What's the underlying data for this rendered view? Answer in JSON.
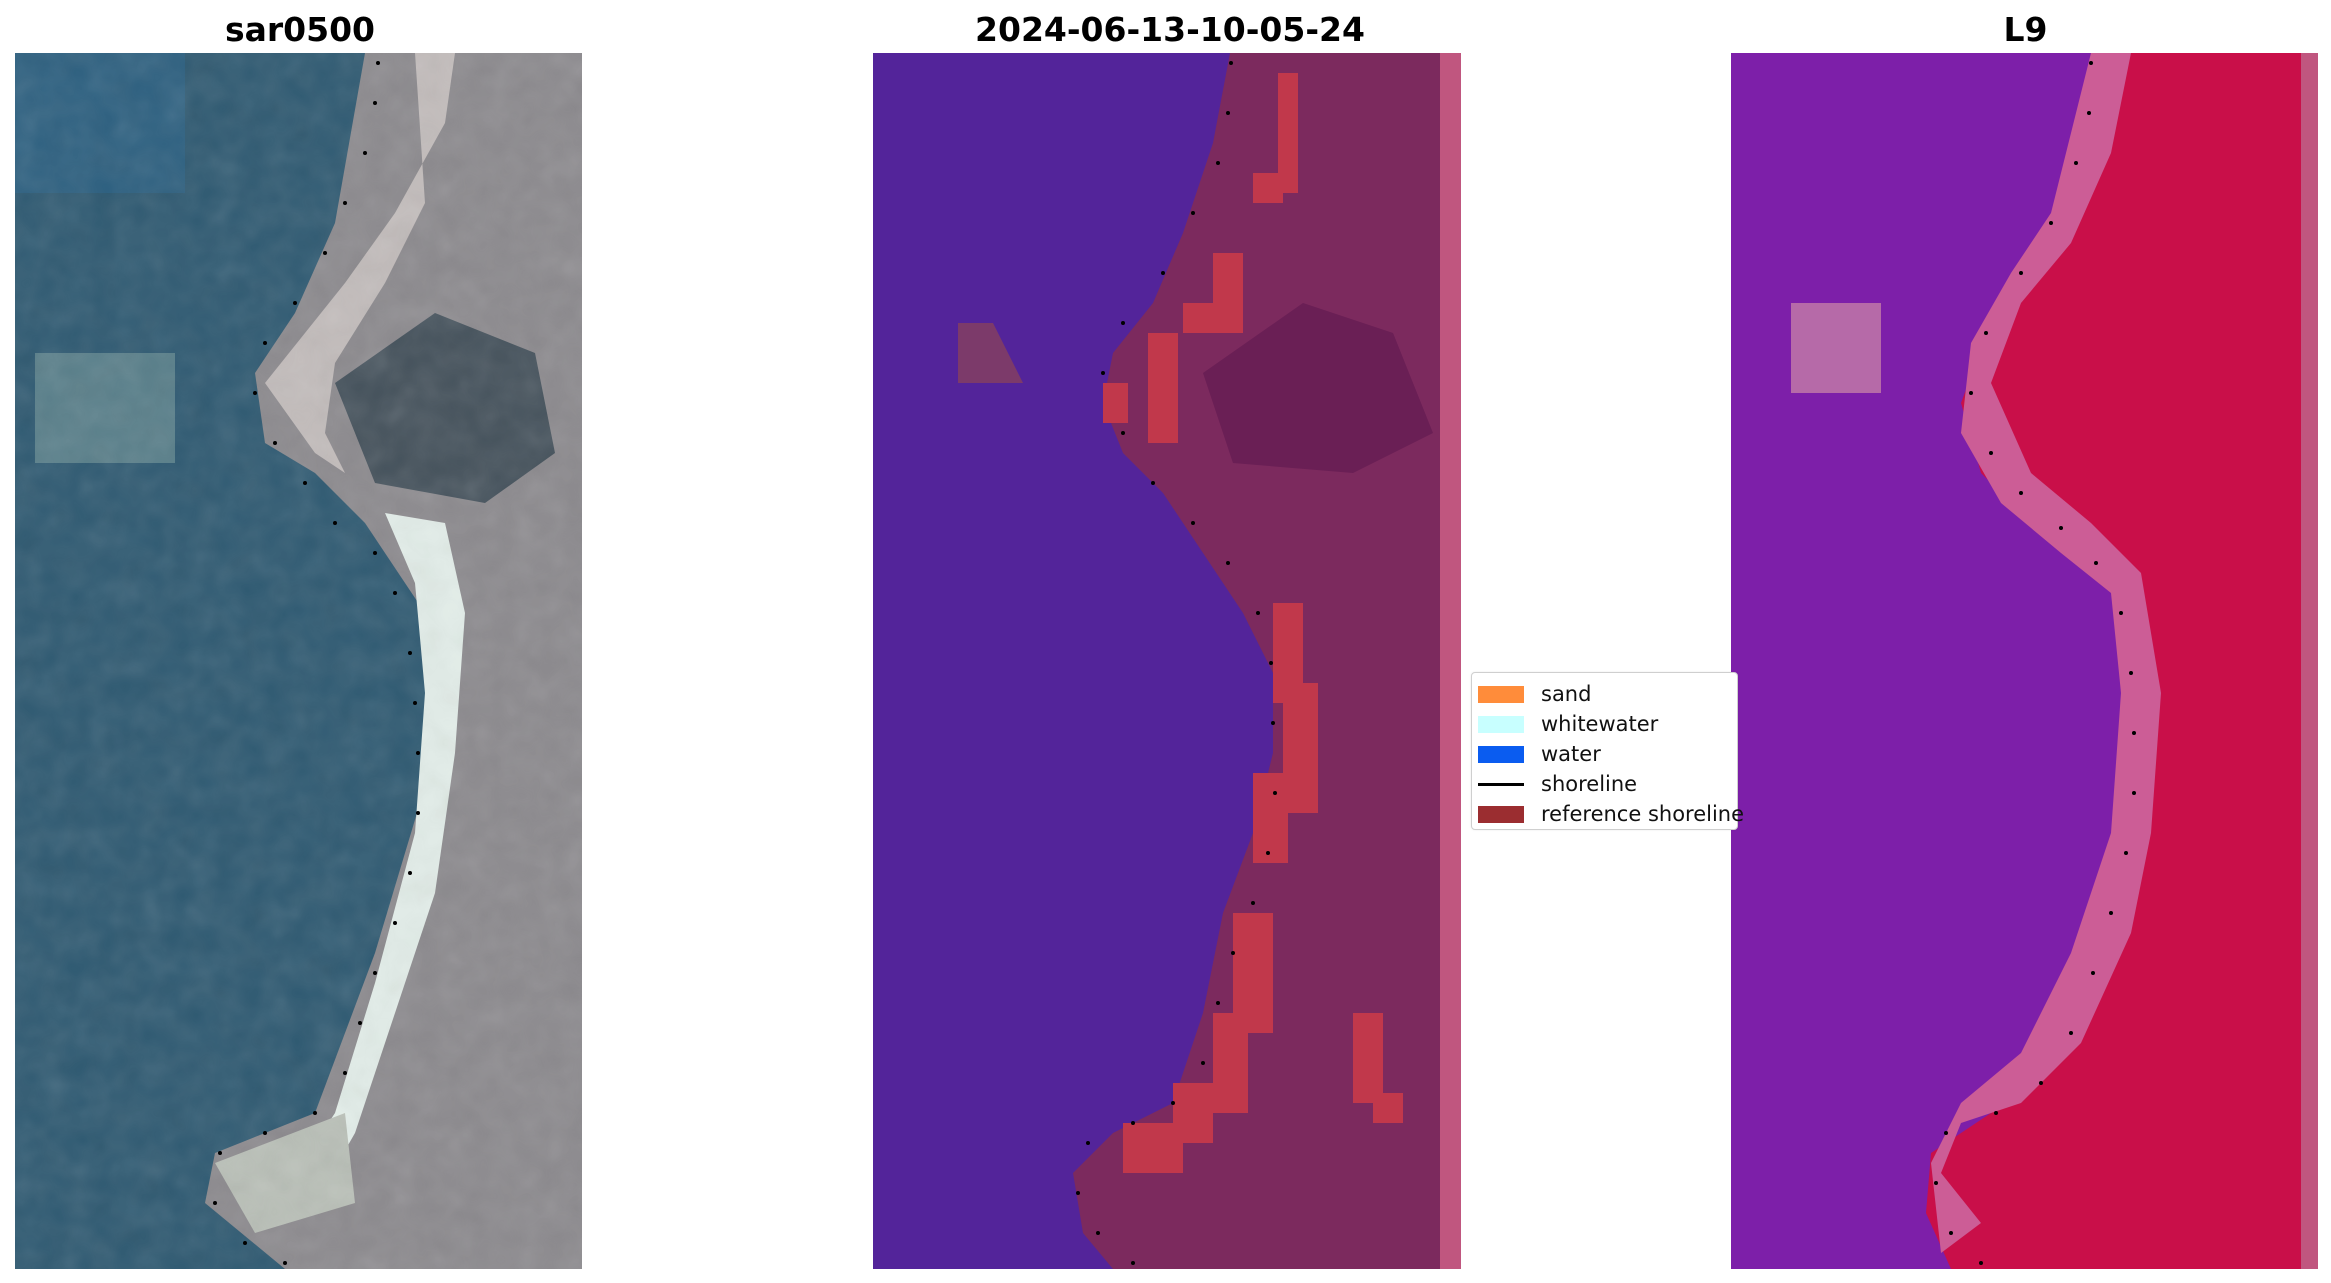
{
  "panels": [
    {
      "title": "sar0500"
    },
    {
      "title": "2024-06-13-10-05-24"
    },
    {
      "title": "L9"
    }
  ],
  "legend": {
    "items": [
      {
        "label": "sand",
        "color": "#ff8c3a",
        "kind": "patch"
      },
      {
        "label": "whitewater",
        "color": "#c8ffff",
        "kind": "patch"
      },
      {
        "label": "water",
        "color": "#0a5cf0",
        "kind": "patch"
      },
      {
        "label": "shoreline",
        "color": "#000000",
        "kind": "line"
      },
      {
        "label": "reference shoreline",
        "color": "#9b2d30",
        "kind": "patch"
      }
    ]
  },
  "colors": {
    "water_rgb": "#2f5a72",
    "land_rgb": "#8c8a8e",
    "beach_rgb": "#e2ede8",
    "classified_water": "#53249a",
    "classified_land": "#7c2a5e",
    "classified_edge": "#c0567f",
    "sand_overlay": "#c1384b",
    "ndwi_water": "#7d1fa9",
    "ndwi_land": "#c90f49",
    "ndwi_beach": "#cc5d96"
  }
}
